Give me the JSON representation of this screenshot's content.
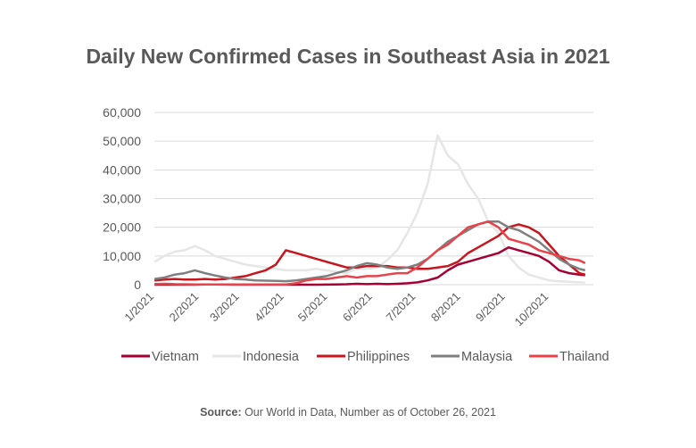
{
  "chart_data": {
    "type": "line",
    "title": "Daily New Confirmed Cases in Southeast Asia in 2021",
    "xlabel": "",
    "ylabel": "",
    "ylim": [
      0,
      60000
    ],
    "yticks": [
      0,
      10000,
      20000,
      30000,
      40000,
      50000,
      60000
    ],
    "ytick_labels": [
      "0",
      "10,000",
      "20,000",
      "30,000",
      "40,000",
      "50,000",
      "60,000"
    ],
    "xtick_labels": [
      "1/2021",
      "2/2021",
      "3/2021",
      "4/2021",
      "5/2021",
      "6/2021",
      "7/2021",
      "8/2021",
      "9/2021",
      "10/2021"
    ],
    "grid": true,
    "legend_placement": "bottom",
    "x": [
      "2021-01-01",
      "2021-01-08",
      "2021-01-15",
      "2021-01-22",
      "2021-01-29",
      "2021-02-05",
      "2021-02-12",
      "2021-02-19",
      "2021-02-26",
      "2021-03-05",
      "2021-03-12",
      "2021-03-19",
      "2021-03-26",
      "2021-04-02",
      "2021-04-09",
      "2021-04-16",
      "2021-04-23",
      "2021-04-30",
      "2021-05-07",
      "2021-05-14",
      "2021-05-21",
      "2021-05-28",
      "2021-06-04",
      "2021-06-11",
      "2021-06-18",
      "2021-06-25",
      "2021-07-02",
      "2021-07-09",
      "2021-07-16",
      "2021-07-23",
      "2021-07-30",
      "2021-08-06",
      "2021-08-13",
      "2021-08-20",
      "2021-08-27",
      "2021-09-03",
      "2021-09-10",
      "2021-09-17",
      "2021-09-24",
      "2021-10-01",
      "2021-10-08",
      "2021-10-15",
      "2021-10-22",
      "2021-10-26"
    ],
    "series": [
      {
        "name": "Indonesia",
        "color": "#e6e6e6",
        "values": [
          8000,
          10000,
          11500,
          12000,
          13500,
          12000,
          10000,
          9000,
          8000,
          7000,
          6500,
          6000,
          5500,
          5000,
          5000,
          5000,
          5500,
          5000,
          4500,
          4000,
          5500,
          5500,
          6000,
          8500,
          12000,
          18000,
          25000,
          35000,
          52000,
          45000,
          42000,
          35000,
          30000,
          22000,
          18000,
          10000,
          6000,
          3500,
          2500,
          1500,
          1200,
          1000,
          800,
          700
        ]
      },
      {
        "name": "Vietnam",
        "color": "#a50034",
        "values": [
          0,
          0,
          0,
          0,
          0,
          50,
          50,
          20,
          10,
          10,
          10,
          10,
          10,
          10,
          10,
          10,
          10,
          20,
          100,
          150,
          300,
          200,
          300,
          200,
          300,
          500,
          800,
          1500,
          2500,
          5000,
          7000,
          8000,
          9000,
          10000,
          11000,
          13000,
          12000,
          11000,
          10000,
          8000,
          5000,
          4000,
          3500,
          3300
        ]
      },
      {
        "name": "Philippines",
        "color": "#c8161e",
        "values": [
          1500,
          1800,
          2000,
          1800,
          1800,
          2000,
          1800,
          2000,
          2500,
          3000,
          4000,
          5000,
          7000,
          12000,
          11000,
          10000,
          9000,
          8000,
          7000,
          6000,
          6000,
          6500,
          6500,
          6500,
          6000,
          6000,
          5500,
          5500,
          6000,
          6500,
          8000,
          11000,
          13000,
          15000,
          17000,
          20000,
          21000,
          20000,
          18000,
          14000,
          10000,
          7000,
          4000,
          3500
        ]
      },
      {
        "name": "Malaysia",
        "color": "#7f7f7f",
        "values": [
          2000,
          2500,
          3500,
          4000,
          5000,
          4000,
          3200,
          2500,
          2000,
          1800,
          1500,
          1400,
          1300,
          1200,
          1500,
          2000,
          2500,
          3000,
          4000,
          5000,
          6500,
          7500,
          7000,
          6000,
          5500,
          6000,
          7000,
          9000,
          12000,
          15000,
          17000,
          19000,
          21000,
          22000,
          22000,
          20000,
          19000,
          17000,
          15000,
          12000,
          9000,
          7000,
          5500,
          5000
        ]
      },
      {
        "name": "Thailand",
        "color": "#e8434a",
        "values": [
          200,
          300,
          200,
          150,
          100,
          100,
          100,
          100,
          100,
          100,
          100,
          100,
          100,
          100,
          500,
          1500,
          2000,
          2000,
          2500,
          3000,
          2500,
          3000,
          3000,
          3500,
          4000,
          4000,
          6000,
          9000,
          12000,
          14000,
          17000,
          20000,
          21000,
          22000,
          20000,
          16000,
          15000,
          14000,
          12000,
          11000,
          10000,
          9000,
          8500,
          7500
        ]
      }
    ],
    "legend_order": [
      "Vietnam",
      "Indonesia",
      "Philippines",
      "Malaysia",
      "Thailand"
    ]
  },
  "source": {
    "label": "Source:",
    "text": " Our World in Data, Number as of October 26, 2021"
  }
}
